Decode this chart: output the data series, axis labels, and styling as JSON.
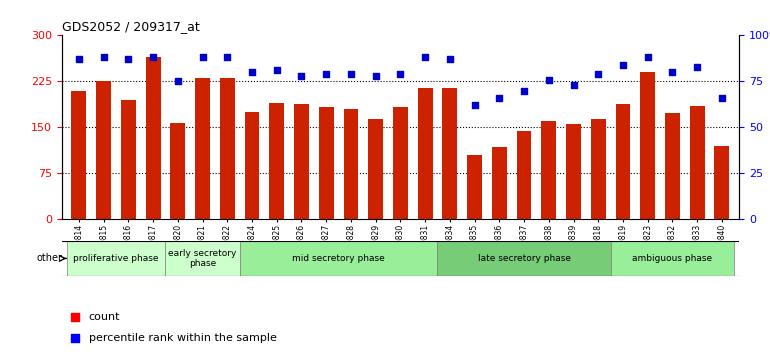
{
  "title": "GDS2052 / 209317_at",
  "samples": [
    "GSM109814",
    "GSM109815",
    "GSM109816",
    "GSM109817",
    "GSM109820",
    "GSM109821",
    "GSM109822",
    "GSM109824",
    "GSM109825",
    "GSM109826",
    "GSM109827",
    "GSM109828",
    "GSM109829",
    "GSM109830",
    "GSM109831",
    "GSM109834",
    "GSM109835",
    "GSM109836",
    "GSM109837",
    "GSM109838",
    "GSM109839",
    "GSM109818",
    "GSM109819",
    "GSM109823",
    "GSM109832",
    "GSM109833",
    "GSM109840"
  ],
  "counts": [
    210,
    225,
    195,
    265,
    158,
    230,
    230,
    175,
    190,
    188,
    183,
    180,
    163,
    183,
    215,
    215,
    105,
    118,
    145,
    160,
    155,
    163,
    188,
    240,
    173,
    185,
    120
  ],
  "percentile_ranks": [
    87,
    88,
    87,
    88,
    75,
    88,
    88,
    80,
    81,
    78,
    79,
    79,
    78,
    79,
    88,
    87,
    62,
    66,
    70,
    76,
    73,
    79,
    84,
    88,
    80,
    83,
    66
  ],
  "phases": [
    {
      "label": "proliferative phase",
      "start": 0,
      "end": 3,
      "color": "#ccffcc"
    },
    {
      "label": "early secretory\nphase",
      "start": 4,
      "end": 6,
      "color": "#ccffcc"
    },
    {
      "label": "mid secretory phase",
      "start": 7,
      "end": 14,
      "color": "#99ee99"
    },
    {
      "label": "late secretory phase",
      "start": 15,
      "end": 21,
      "color": "#77cc77"
    },
    {
      "label": "ambiguous phase",
      "start": 22,
      "end": 26,
      "color": "#99ee99"
    }
  ],
  "bar_color": "#cc2200",
  "dot_color": "#0000cc",
  "left_ylim": [
    0,
    300
  ],
  "right_ylim": [
    0,
    100
  ],
  "left_yticks": [
    0,
    75,
    150,
    225,
    300
  ],
  "right_yticks": [
    0,
    25,
    50,
    75,
    100
  ],
  "background_color": "#ffffff",
  "plot_bg": "#ffffff",
  "other_label": "other",
  "legend_count": "count",
  "legend_percentile": "percentile rank within the sample"
}
